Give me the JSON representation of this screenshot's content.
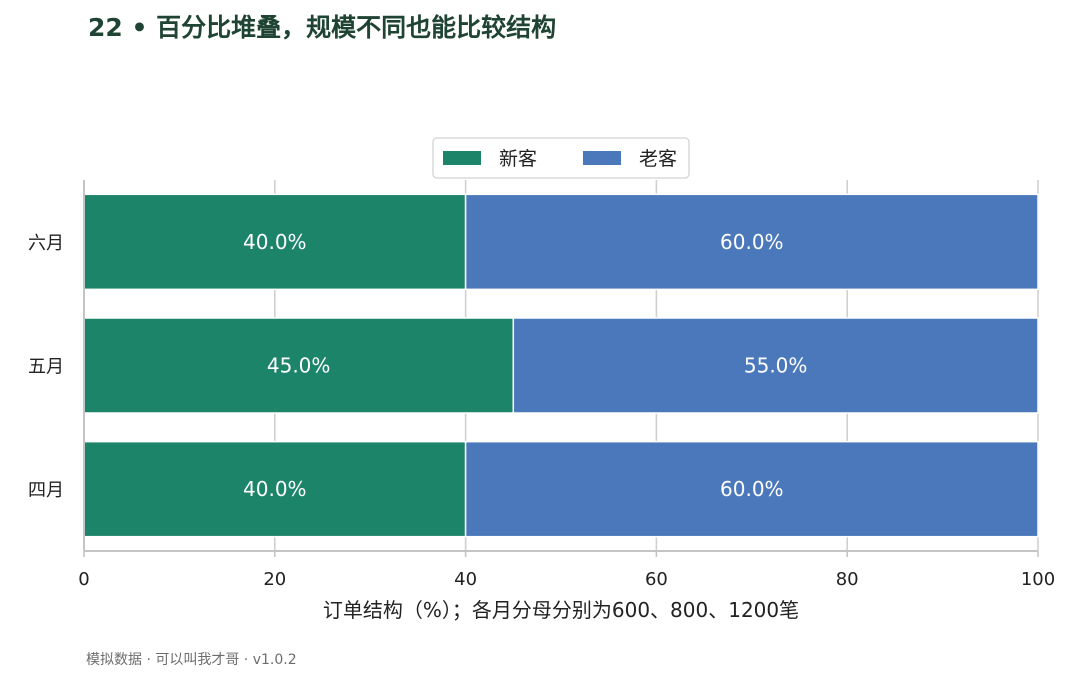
{
  "page": {
    "title": "22 • 百分比堆叠，规模不同也能比较结构",
    "footer": "模拟数据 · 可以叫我才哥 · v1.0.2"
  },
  "chart_data": {
    "type": "bar",
    "orientation": "horizontal",
    "stacked": true,
    "categories": [
      "六月",
      "五月",
      "四月"
    ],
    "series": [
      {
        "name": "新客",
        "color": "#1b8469",
        "values": [
          40.0,
          45.0,
          40.0
        ],
        "labels": [
          "40.0%",
          "45.0%",
          "40.0%"
        ]
      },
      {
        "name": "老客",
        "color": "#4a78bb",
        "values": [
          60.0,
          55.0,
          60.0
        ],
        "labels": [
          "60.0%",
          "55.0%",
          "60.0%"
        ]
      }
    ],
    "xlabel": "订单结构（%）；各月分母分别为600、800、1200笔",
    "ylabel": "",
    "xlim": [
      0,
      100
    ],
    "xticks": [
      0,
      20,
      40,
      60,
      80,
      100
    ],
    "xtick_labels": [
      "0",
      "20",
      "40",
      "60",
      "80",
      "100"
    ],
    "grid": "vertical",
    "legend": "top-center"
  }
}
